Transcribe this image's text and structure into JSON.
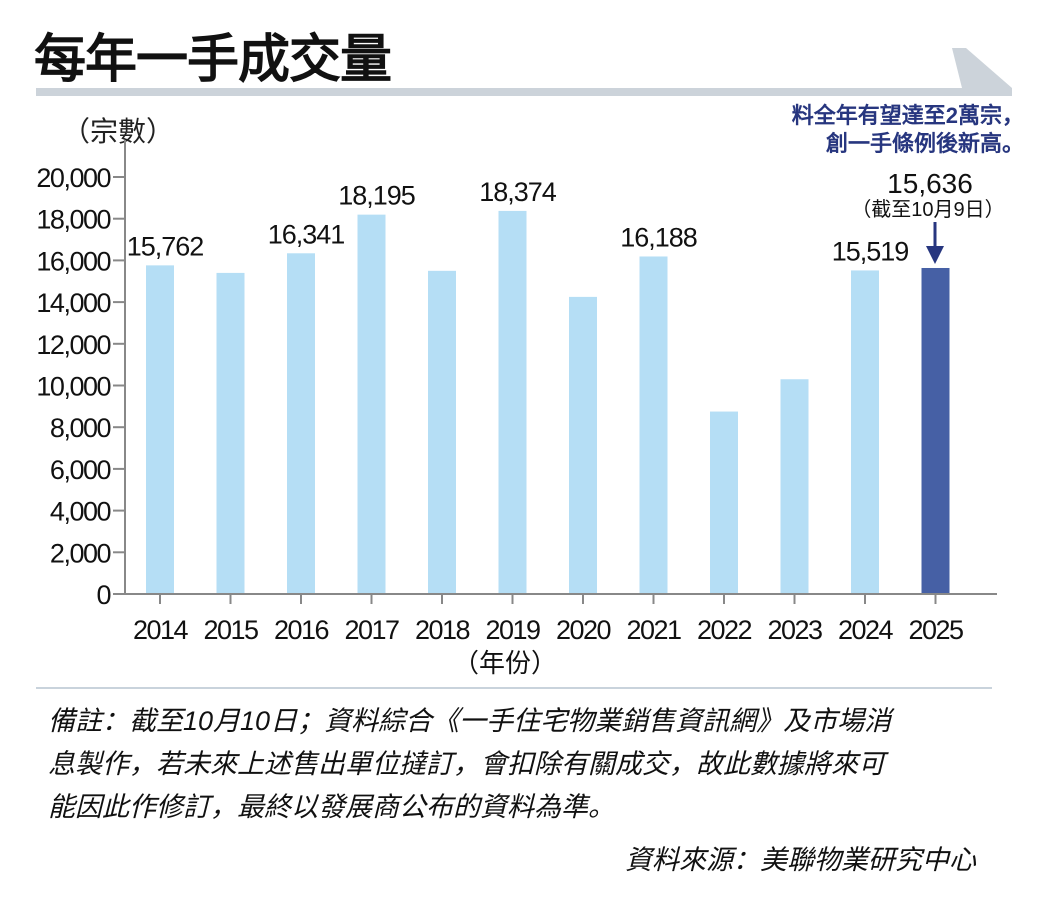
{
  "header": {
    "title": "每年一手成交量"
  },
  "annotation": {
    "line1": "料全年有望達至2萬宗，",
    "line2": "創一手條例後新高。",
    "value_label": "15,636",
    "date_label": "（截至10月9日）"
  },
  "footer": {
    "note_lines": [
      "備註：截至10月10日；資料綜合《一手住宅物業銷售資訊網》及市場消",
      "息製作，若未來上述售出單位撻訂，會扣除有關成交，故此數據將來可",
      "能因此作修訂，最終以發展商公布的資料為準。"
    ],
    "source": "資料來源：美聯物業研究中心"
  },
  "colors": {
    "bar": "#b5def5",
    "bar_highlight": "#4660a5",
    "annotation": "#27367f",
    "axis": "#888888",
    "title_band": "#ccd3da"
  },
  "chart_data": {
    "type": "bar",
    "title": "每年一手成交量",
    "xlabel": "（年份）",
    "ylabel": "（宗數）",
    "ylim": [
      0,
      20000
    ],
    "yticks": [
      0,
      2000,
      4000,
      6000,
      8000,
      10000,
      12000,
      14000,
      16000,
      18000,
      20000
    ],
    "ytick_labels": [
      "0",
      "2,000",
      "4,000",
      "6,000",
      "8,000",
      "10,000",
      "12,000",
      "14,000",
      "16,000",
      "18,000",
      "20,000"
    ],
    "grid": false,
    "legend": "none",
    "categories": [
      "2014",
      "2015",
      "2016",
      "2017",
      "2018",
      "2019",
      "2020",
      "2021",
      "2022",
      "2023",
      "2024",
      "2025"
    ],
    "values": [
      15762,
      15400,
      16341,
      18195,
      15500,
      18374,
      14250,
      16188,
      8750,
      10300,
      15519,
      15636
    ],
    "data_labels": [
      "15,762",
      "",
      "16,341",
      "18,195",
      "",
      "18,374",
      "",
      "16,188",
      "",
      "",
      "15,519",
      ""
    ],
    "highlight_index": 11
  }
}
